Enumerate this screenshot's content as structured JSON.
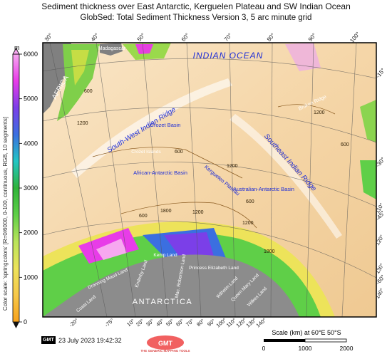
{
  "title": "Sediment thickness over East Antarctic, Kerguelen Plateau and SW Indian Ocean",
  "subtitle": "GlobSed: Total Sediment Thickness Version 3, 5 arc minute grid",
  "colorbar": {
    "unit": "m",
    "label": "Color scale: 'springcolors' [R=0/6000, 0-100, continuous, RGB, 10 segments]",
    "ticks": [
      "0",
      "1000",
      "2000",
      "3000",
      "4000",
      "5000",
      "6000"
    ],
    "colors": [
      "#f7a21b",
      "#f6c84a",
      "#ede35a",
      "#b9e45a",
      "#5fcf48",
      "#2fb33a",
      "#23c6c4",
      "#3b6fe0",
      "#7b3fe8",
      "#e83ce8",
      "#f7a8f0"
    ]
  },
  "map_labels": {
    "indian_ocean": "INDIAN OCEAN",
    "africa": "AFRICA",
    "madagascar": "Madagascar",
    "antarctica": "ANTARCTICA",
    "sw_ridge": "South-West Indian Ridge",
    "se_ridge": "Southeast Indian Ridge",
    "crozet_basin": "Crozet Basin",
    "crozet_islands": "Crozet Islands",
    "african_antarctic_basin": "African-Antarctic Basin",
    "kerguelen_plateau": "Kerguelen Plateau",
    "australian_antarctic_basin": "Australian-Antarctic Basin",
    "broken_ridge": "Broken Ridge",
    "kemp_land": "Kemp Land",
    "enderby_land": "Enderby Land",
    "dronning_maud_land": "Dronning Maud Land",
    "coast_land": "Coast Land",
    "mac_robertson_land": "Mac. Robertson Land",
    "princess_elizabeth_land": "Princess Elizabeth Land",
    "wilhelm_land": "Wilhelm Land",
    "queen_mary_land": "Queen Mary Land",
    "wilkes_land": "Wilkes Land"
  },
  "contours": [
    "600",
    "1200",
    "1800",
    "1200",
    "600",
    "600",
    "1200",
    "600",
    "1200",
    "1800",
    "1200",
    "600"
  ],
  "graticule": {
    "longitudes_top": [
      "30°",
      "40°",
      "50°",
      "60°",
      "70°",
      "80°",
      "90°",
      "100°"
    ],
    "latitudes_right": [
      "-15°",
      "-30°",
      "-45°",
      "-60°"
    ],
    "longitudes_bottom": [
      "-20°",
      "-75°",
      "10°",
      "20°",
      "30°",
      "40°",
      "50°",
      "60°",
      "70°",
      "80°",
      "90°",
      "100°",
      "110°",
      "120°",
      "130°",
      "140°"
    ],
    "lon_far_right": [
      "110°",
      "120°",
      "130°",
      "140°"
    ]
  },
  "footer": {
    "gmt_logo": "GMT",
    "timestamp": "23 July 2023 19:42:32",
    "logo_text": "THE GENERIC MAPPING TOOLS",
    "scale_title": "Scale (km) at 60°E 50°S",
    "scale_ticks": [
      "0",
      "1000",
      "2000"
    ]
  }
}
